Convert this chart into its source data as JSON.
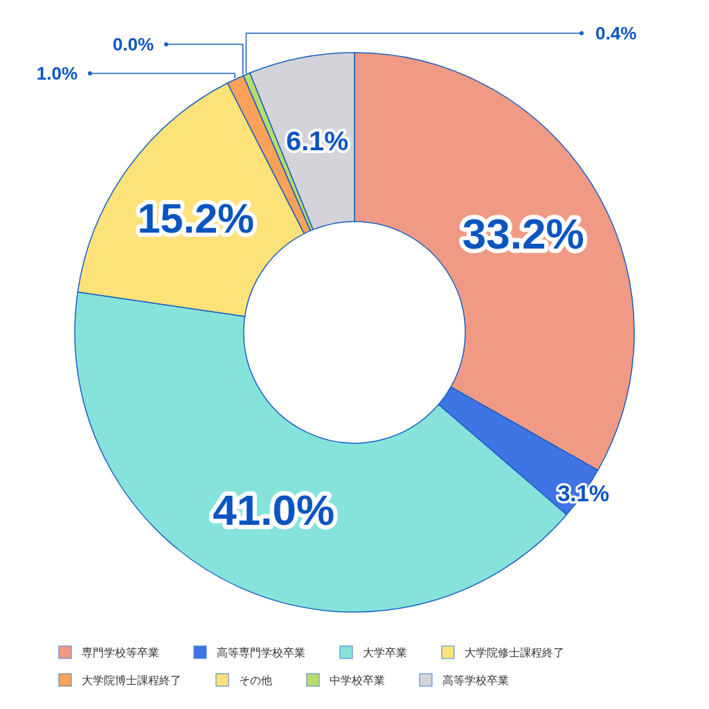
{
  "chart_data": {
    "type": "donut",
    "categories": [
      "専門学校等卒業",
      "高等専門学校卒業",
      "大学卒業",
      "大学院修士課程終了",
      "大学院博士課程終了",
      "その他",
      "中学校卒業",
      "高等学校卒業"
    ],
    "values": [
      33.2,
      3.1,
      41.0,
      15.2,
      1.0,
      0.0,
      0.4,
      6.1
    ],
    "colors": [
      "#f09a85",
      "#3f74e4",
      "#86e3dc",
      "#fde27a",
      "#fba25a",
      "#fde27a",
      "#b5dd6e",
      "#d3d3d9"
    ],
    "value_labels": [
      "33.2%",
      "3.1%",
      "41.0%",
      "15.2%",
      "1.0%",
      "0.0%",
      "0.4%",
      "6.1%"
    ],
    "legend": "bottom"
  }
}
